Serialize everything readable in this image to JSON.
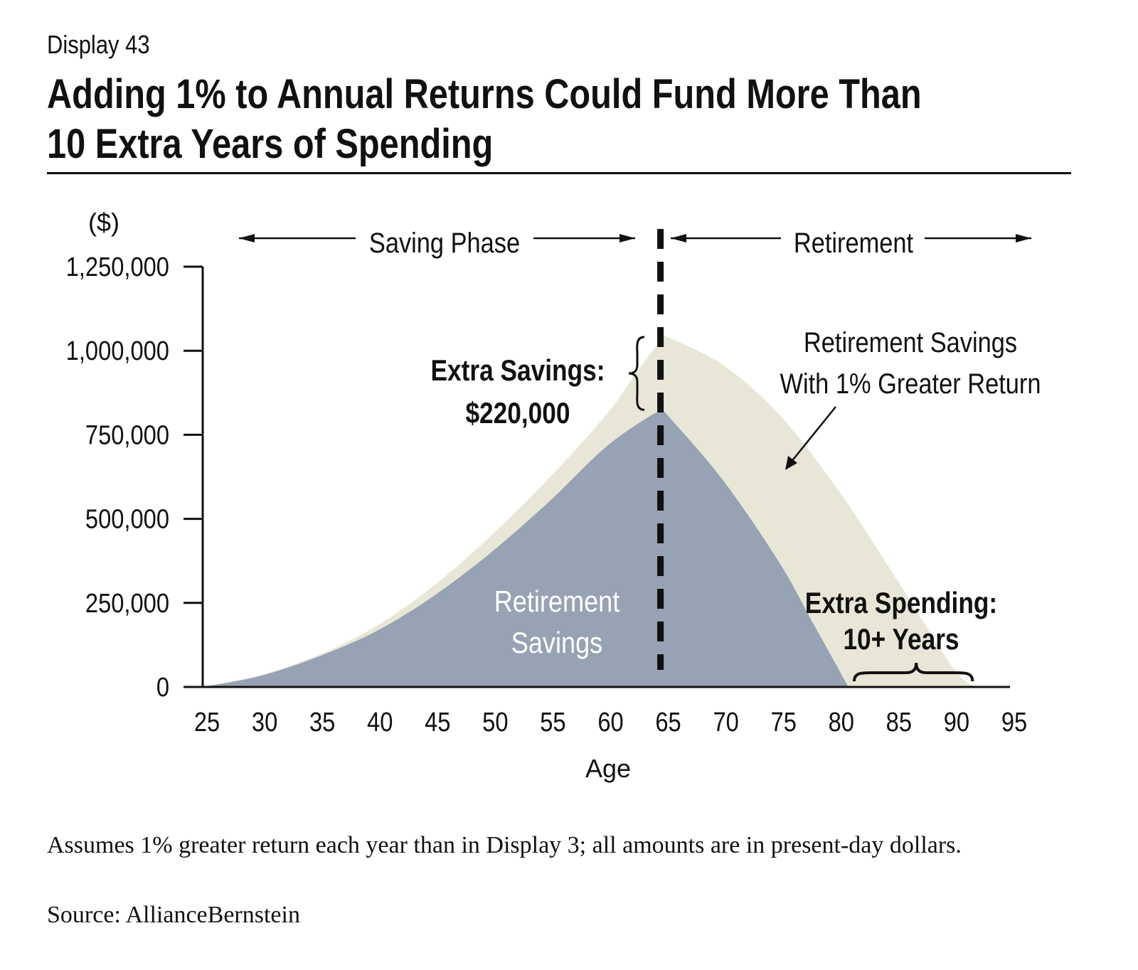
{
  "header": {
    "display": "Display 43",
    "title_line1": "Adding 1% to Annual Returns Could Fund More Than",
    "title_line2": "10 Extra Years of Spending"
  },
  "chart_data": {
    "type": "area",
    "x_ticks": [
      25,
      30,
      35,
      40,
      45,
      50,
      55,
      60,
      65,
      70,
      75,
      80,
      85,
      90,
      95
    ],
    "y_ticks": [
      0,
      250000,
      500000,
      750000,
      1000000,
      1250000
    ],
    "y_tick_labels": [
      "0",
      "250,000",
      "500,000",
      "750,000",
      "1,000,000",
      "1,250,000"
    ],
    "x_tick_labels": [
      "25",
      "30",
      "35",
      "40",
      "45",
      "50",
      "55",
      "60",
      "65",
      "70",
      "75",
      "80",
      "85",
      "90",
      "95"
    ],
    "xlabel": "Age",
    "ylabel": "($)",
    "xlim": [
      25,
      95
    ],
    "ylim": [
      0,
      1250000
    ],
    "grid": false,
    "series": [
      {
        "name": "Retirement Savings With 1% Greater Return",
        "color": "#e8e7d7",
        "x": [
          25,
          30,
          35,
          40,
          45,
          50,
          55,
          60,
          62.5,
          65,
          70,
          75,
          80,
          85,
          90,
          92
        ],
        "y": [
          0,
          35000,
          95000,
          180000,
          300000,
          450000,
          620000,
          810000,
          930000,
          1045000,
          960000,
          810000,
          590000,
          330000,
          60000,
          0
        ]
      },
      {
        "name": "Retirement Savings",
        "color": "#97a2b4",
        "x": [
          25,
          30,
          35,
          40,
          45,
          50,
          55,
          60,
          64,
          65,
          70,
          75,
          78,
          81
        ],
        "y": [
          0,
          33000,
          90000,
          165000,
          270000,
          400000,
          550000,
          715000,
          810000,
          820000,
          620000,
          370000,
          185000,
          0
        ]
      }
    ],
    "phase_divider_x": 65,
    "phases": {
      "saving": "Saving Phase",
      "retirement": "Retirement"
    },
    "annotations": {
      "extra_savings_line1": "Extra Savings:",
      "extra_savings_line2": "$220,000",
      "greater_return_line1": "Retirement Savings",
      "greater_return_line2": "With 1% Greater Return",
      "base_line1": "Retirement",
      "base_line2": "Savings",
      "extra_spending_line1": "Extra Spending:",
      "extra_spending_line2": "10+ Years"
    },
    "extra_savings_range": [
      820000,
      1045000
    ],
    "extra_spending_range": [
      81,
      92
    ]
  },
  "footer": {
    "footnote": "Assumes 1% greater return each year than in Display 3; all amounts are in present-day dollars.",
    "source": "Source: AllianceBernstein"
  }
}
